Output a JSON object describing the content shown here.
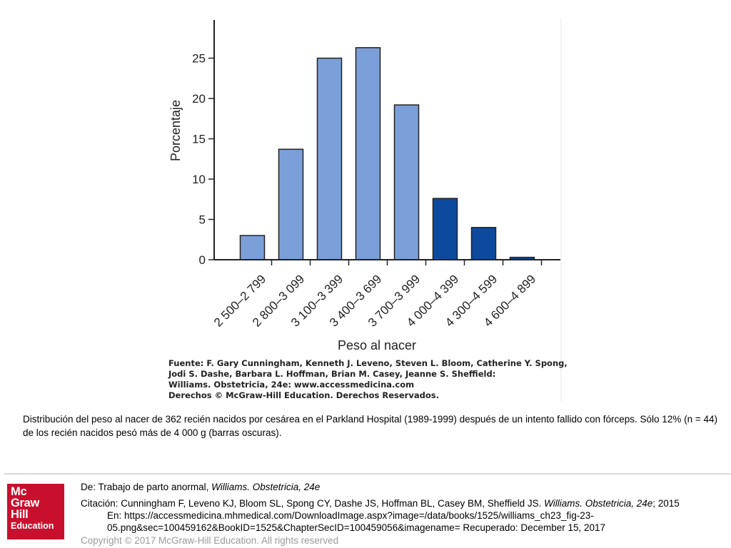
{
  "chart_data": {
    "type": "bar",
    "title": "",
    "xlabel": "Peso al nacer",
    "ylabel": "Porcentaje",
    "categories": [
      "2 500–2 799",
      "2 800–3 099",
      "3 100–3 399",
      "3 400–3 699",
      "3 700–3 999",
      "4 000–4 399",
      "4 300–4 599",
      "4 600–4 899"
    ],
    "values": [
      3.0,
      13.7,
      25.0,
      26.3,
      19.2,
      7.6,
      4.0,
      0.3
    ],
    "dark": [
      false,
      false,
      false,
      false,
      false,
      true,
      true,
      true
    ],
    "ylim": [
      0,
      30
    ],
    "yticks": [
      0,
      5,
      10,
      15,
      20,
      25
    ],
    "grid": false,
    "colors": {
      "light": "#7b9fd8",
      "dark": "#0d4a9e",
      "axis": "#222222"
    }
  },
  "source": {
    "lines": [
      "Fuente: F. Gary Cunningham, Kenneth J. Leveno, Steven L. Bloom, Catherine Y. Spong,",
      "Jodi S. Dashe, Barbara L. Hoffman, Brian M. Casey, Jeanne S. Sheffield:",
      "Williams. Obstetricia, 24e: www.accessmedicina.com",
      "Derechos © McGraw-Hill Education. Derechos Reservados."
    ]
  },
  "caption": "Distribución del peso al nacer de 362 recién nacidos por cesárea en el Parkland Hospital (1989-1999) después de un intento fallido con fórceps. Sólo 12% (n = 44) de los recién nacidos pesó más de 4 000 g (barras oscuras).",
  "logo": {
    "line1": "Mc",
    "line2": "Graw",
    "line3": "Hill",
    "line4": "Education"
  },
  "footer": {
    "from_prefix": "De: Trabajo de parto anormal, ",
    "from_book": "Williams. Obstetricia, 24e",
    "citation_prefix": "Citación: Cunningham F, Leveno KJ, Bloom SL, Spong CY, Dashe JS, Hoffman BL, Casey BM, Sheffield JS. ",
    "citation_book": "Williams. Obstetricia, 24e",
    "citation_suffix": "; 2015",
    "url_line1": "En: https://accessmedicina.mhmedical.com/DownloadImage.aspx?image=/data/books/1525/williams_ch23_fig-23-",
    "url_line2": "05.png&sec=100459162&BookID=1525&ChapterSecID=100459056&imagename= Recuperado: December 15, 2017",
    "copyright": "Copyright © 2017 McGraw-Hill Education. All rights reserved"
  }
}
